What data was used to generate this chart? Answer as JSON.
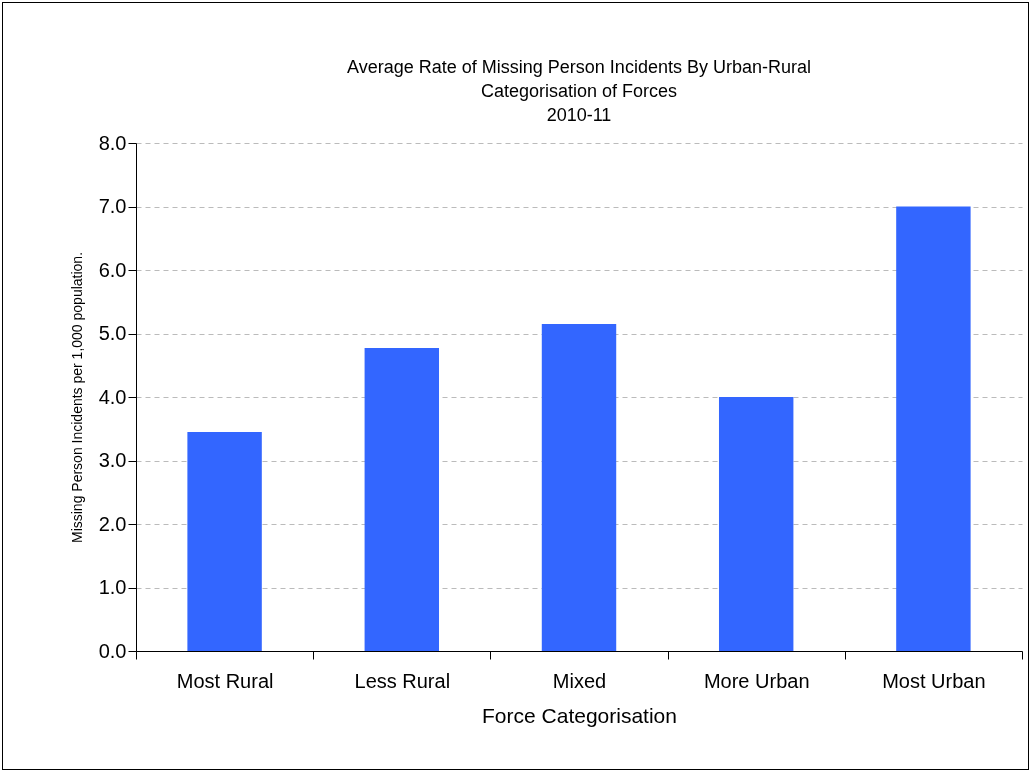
{
  "chart_data": {
    "type": "bar",
    "title": [
      "Average Rate of Missing Person Incidents By Urban-Rural",
      "Categorisation of Forces",
      "2010-11"
    ],
    "xlabel": "Force Categorisation",
    "ylabel": "Missing Person Incidents per 1,000 population.",
    "categories": [
      "Most Rural",
      "Less Rural",
      "Mixed",
      "More Urban",
      "Most Urban"
    ],
    "values": [
      3.45,
      4.77,
      5.15,
      4.0,
      7.0
    ],
    "color": "#3366ff",
    "ylim": [
      0,
      8
    ],
    "yticks": [
      {
        "value": 0,
        "label": "0.0"
      },
      {
        "value": 1,
        "label": "1.0"
      },
      {
        "value": 2,
        "label": "2.0"
      },
      {
        "value": 3,
        "label": "3.0"
      },
      {
        "value": 4,
        "label": "4.0"
      },
      {
        "value": 5,
        "label": "5.0"
      },
      {
        "value": 6,
        "label": "6.0"
      },
      {
        "value": 7,
        "label": "7.0"
      },
      {
        "value": 8,
        "label": "8.0"
      }
    ],
    "grid": "y"
  }
}
